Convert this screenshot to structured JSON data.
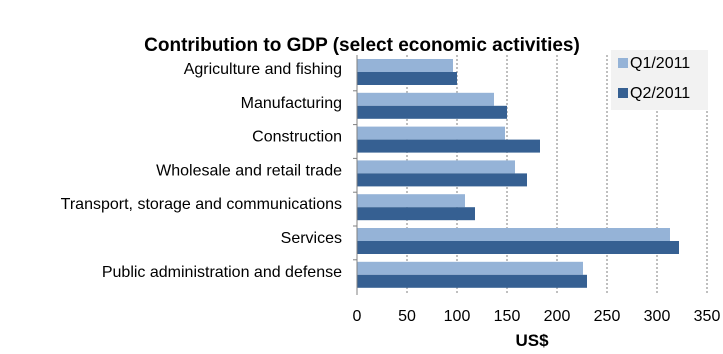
{
  "chart_data": {
    "type": "bar",
    "orientation": "horizontal",
    "title": "Contribution to GDP (select economic activities)",
    "xlabel": "US$",
    "ylabel": "",
    "xlim": [
      0,
      350
    ],
    "x_ticks": [
      0,
      50,
      100,
      150,
      200,
      250,
      300,
      350
    ],
    "grid": "vertical dotted",
    "legend_position": "top-right",
    "categories": [
      "Agriculture and fishing",
      "Manufacturing",
      "Construction",
      "Wholesale and retail trade",
      "Transport, storage and communications",
      "Services",
      "Public administration and defense"
    ],
    "series": [
      {
        "name": "Q1/2011",
        "color": "#95B3D7",
        "values": [
          96,
          137,
          148,
          158,
          108,
          313,
          226
        ]
      },
      {
        "name": "Q2/2011",
        "color": "#366092",
        "values": [
          100,
          150,
          183,
          170,
          118,
          322,
          230
        ]
      }
    ]
  }
}
